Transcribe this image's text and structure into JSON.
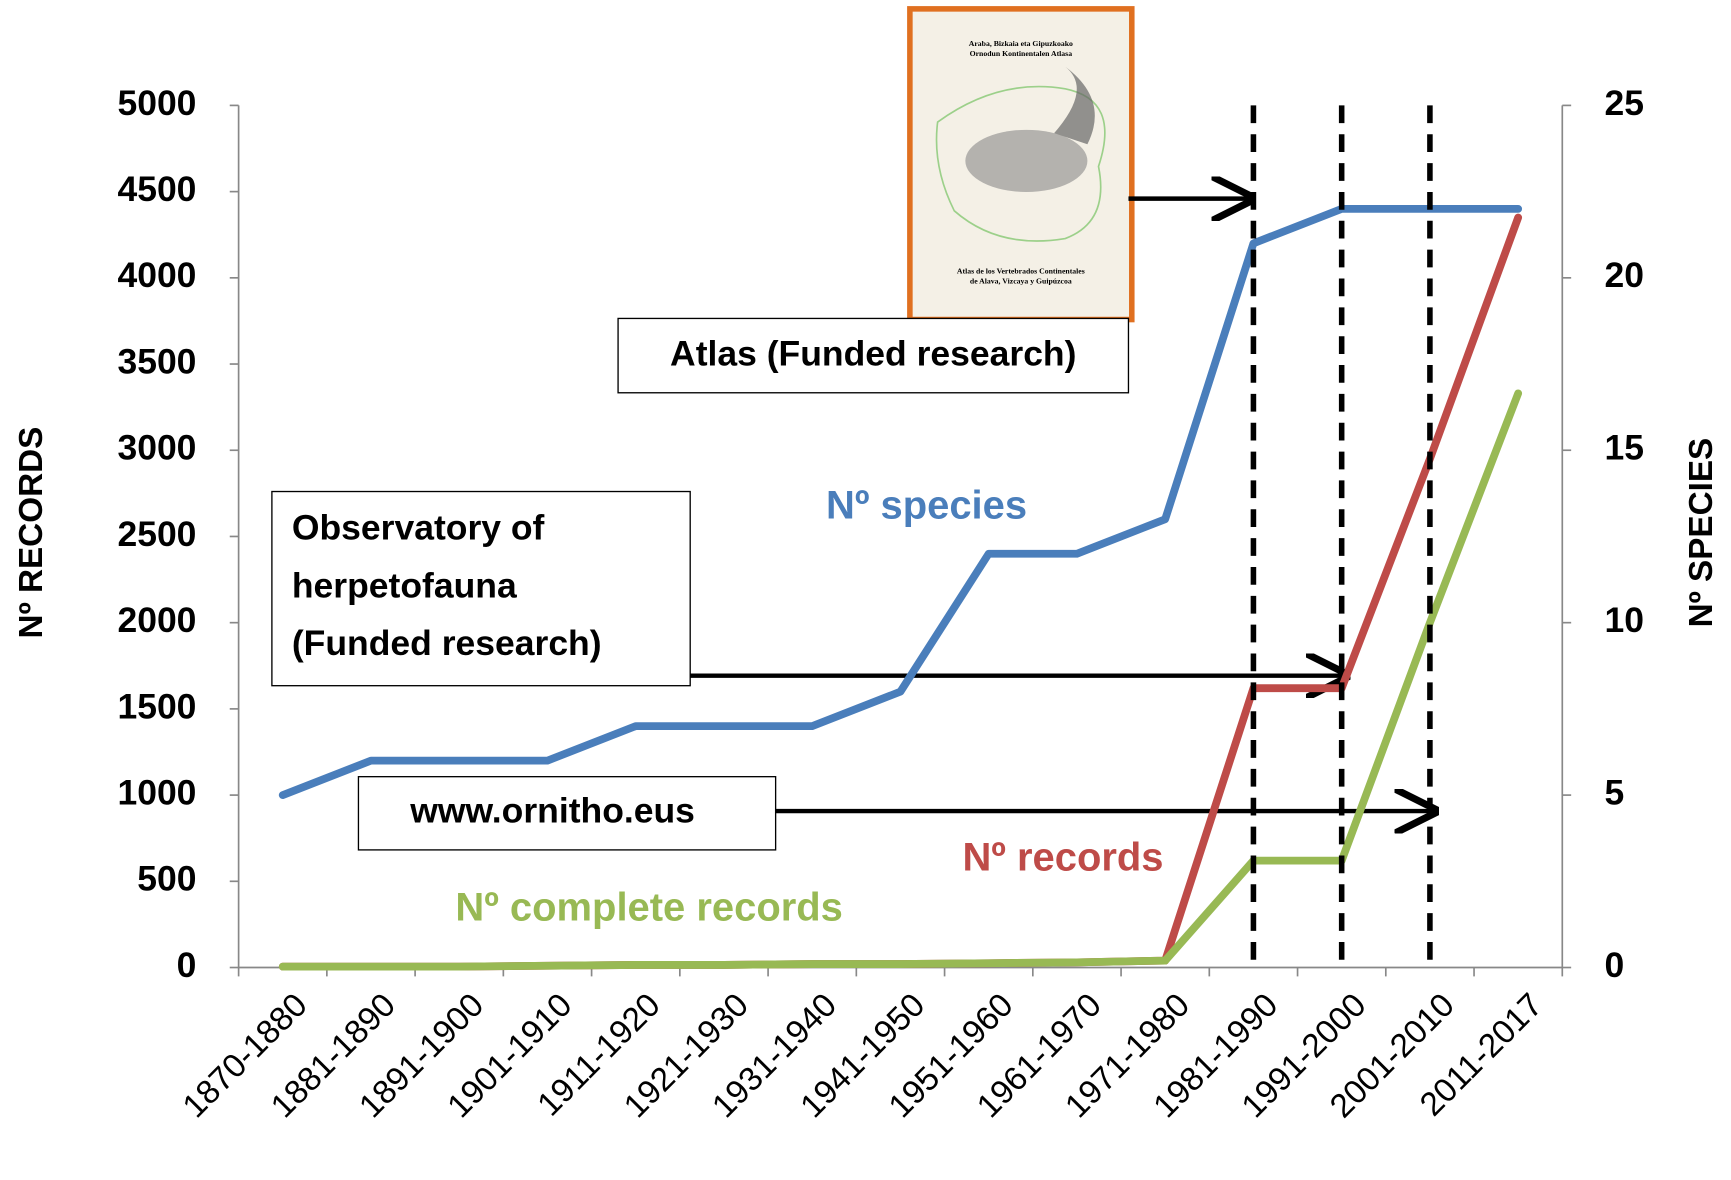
{
  "chart_data": {
    "type": "line",
    "categories": [
      "1870-1880",
      "1881-1890",
      "1891-1900",
      "1901-1910",
      "1911-1920",
      "1921-1930",
      "1931-1940",
      "1941-1950",
      "1951-1960",
      "1961-1970",
      "1971-1980",
      "1981-1990",
      "1991-2000",
      "2001-2010",
      "2011-2017"
    ],
    "series": [
      {
        "name": "Nº records",
        "color": "#be4b48",
        "values": [
          5,
          5,
          5,
          10,
          15,
          15,
          20,
          20,
          25,
          30,
          40,
          1620,
          1620,
          2950,
          4350
        ]
      },
      {
        "name": "Nº complete records",
        "color": "#98b954",
        "values": [
          5,
          5,
          5,
          10,
          15,
          15,
          20,
          20,
          25,
          30,
          40,
          620,
          620,
          2000,
          3330
        ]
      },
      {
        "name": "Nº species",
        "color": "#4a7ebb",
        "axis": "y2",
        "values": [
          5,
          6,
          6,
          6,
          7,
          7,
          7,
          8,
          12,
          12,
          13,
          21,
          22,
          22,
          22
        ]
      }
    ],
    "ylabel": "Nº RECORDS",
    "y2label": "Nº  SPECIES",
    "ylim": [
      0,
      5000
    ],
    "yticks": [
      0,
      500,
      1000,
      1500,
      2000,
      2500,
      3000,
      3500,
      4000,
      4500,
      5000
    ],
    "y2lim": [
      0,
      25
    ],
    "y2ticks": [
      0,
      5,
      10,
      15,
      20,
      25
    ],
    "annotations": {
      "atlas": "Atlas (Funded research)",
      "observatory": [
        "Observatory of",
        "herpetofauna",
        "(Funded research)"
      ],
      "ornitho": "www.ornitho.eus"
    },
    "book": {
      "title": [
        "Araba, Bizkaia eta Gipuzkoako",
        "Ornodun Kontinentalen Atlasa"
      ],
      "subtitle": [
        "Atlas de los Vertebrados Continentales",
        "de Alava, Vizcaya y Guipúzcoa"
      ]
    }
  }
}
